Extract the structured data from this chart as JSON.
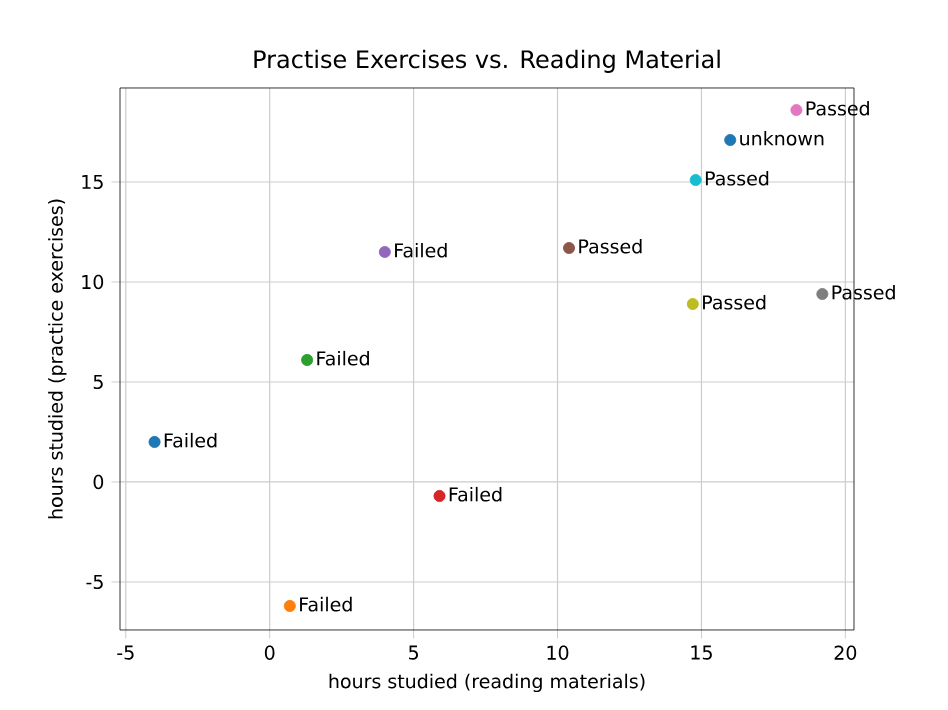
{
  "chart_data": {
    "type": "scatter",
    "title": "Practise Exercises vs. Reading Material",
    "xlabel": "hours studied (reading materials)",
    "ylabel": "hours studied (practice exercises)",
    "x": [
      -4.0,
      0.7,
      1.3,
      5.9,
      4.0,
      10.4,
      18.3,
      19.2,
      14.7,
      14.8,
      16.0
    ],
    "values": [
      2.0,
      -6.2,
      6.1,
      -0.7,
      11.5,
      11.7,
      18.6,
      9.4,
      8.9,
      15.1,
      17.1
    ],
    "colors": [
      "#1f77b4",
      "#ff7f0e",
      "#2ca02c",
      "#d62728",
      "#9467bd",
      "#8c564b",
      "#e377c2",
      "#7f7f7f",
      "#bcbd22",
      "#17becf",
      "#1f77b4"
    ],
    "annotations": [
      {
        "text": "Failed",
        "x": -4.0,
        "y": 2.0
      },
      {
        "text": "Failed",
        "x": 0.7,
        "y": -6.2
      },
      {
        "text": "Failed",
        "x": 1.3,
        "y": 6.1
      },
      {
        "text": "Failed",
        "x": 5.9,
        "y": -0.7
      },
      {
        "text": "Failed",
        "x": 4.0,
        "y": 11.5
      },
      {
        "text": "Passed",
        "x": 10.4,
        "y": 11.7
      },
      {
        "text": "Passed",
        "x": 18.3,
        "y": 18.6
      },
      {
        "text": "Passed",
        "x": 19.2,
        "y": 9.4
      },
      {
        "text": "Passed",
        "x": 14.7,
        "y": 8.9
      },
      {
        "text": "Passed",
        "x": 14.8,
        "y": 15.1
      },
      {
        "text": "unknown",
        "x": 16.0,
        "y": 17.1
      }
    ],
    "xlim": [
      -5.2,
      20.3
    ],
    "ylim": [
      -7.4,
      19.7
    ],
    "xticks": [
      -5,
      0,
      5,
      10,
      15,
      20
    ],
    "yticks": [
      -5,
      0,
      5,
      10,
      15
    ],
    "grid": true,
    "marker": "circle"
  }
}
